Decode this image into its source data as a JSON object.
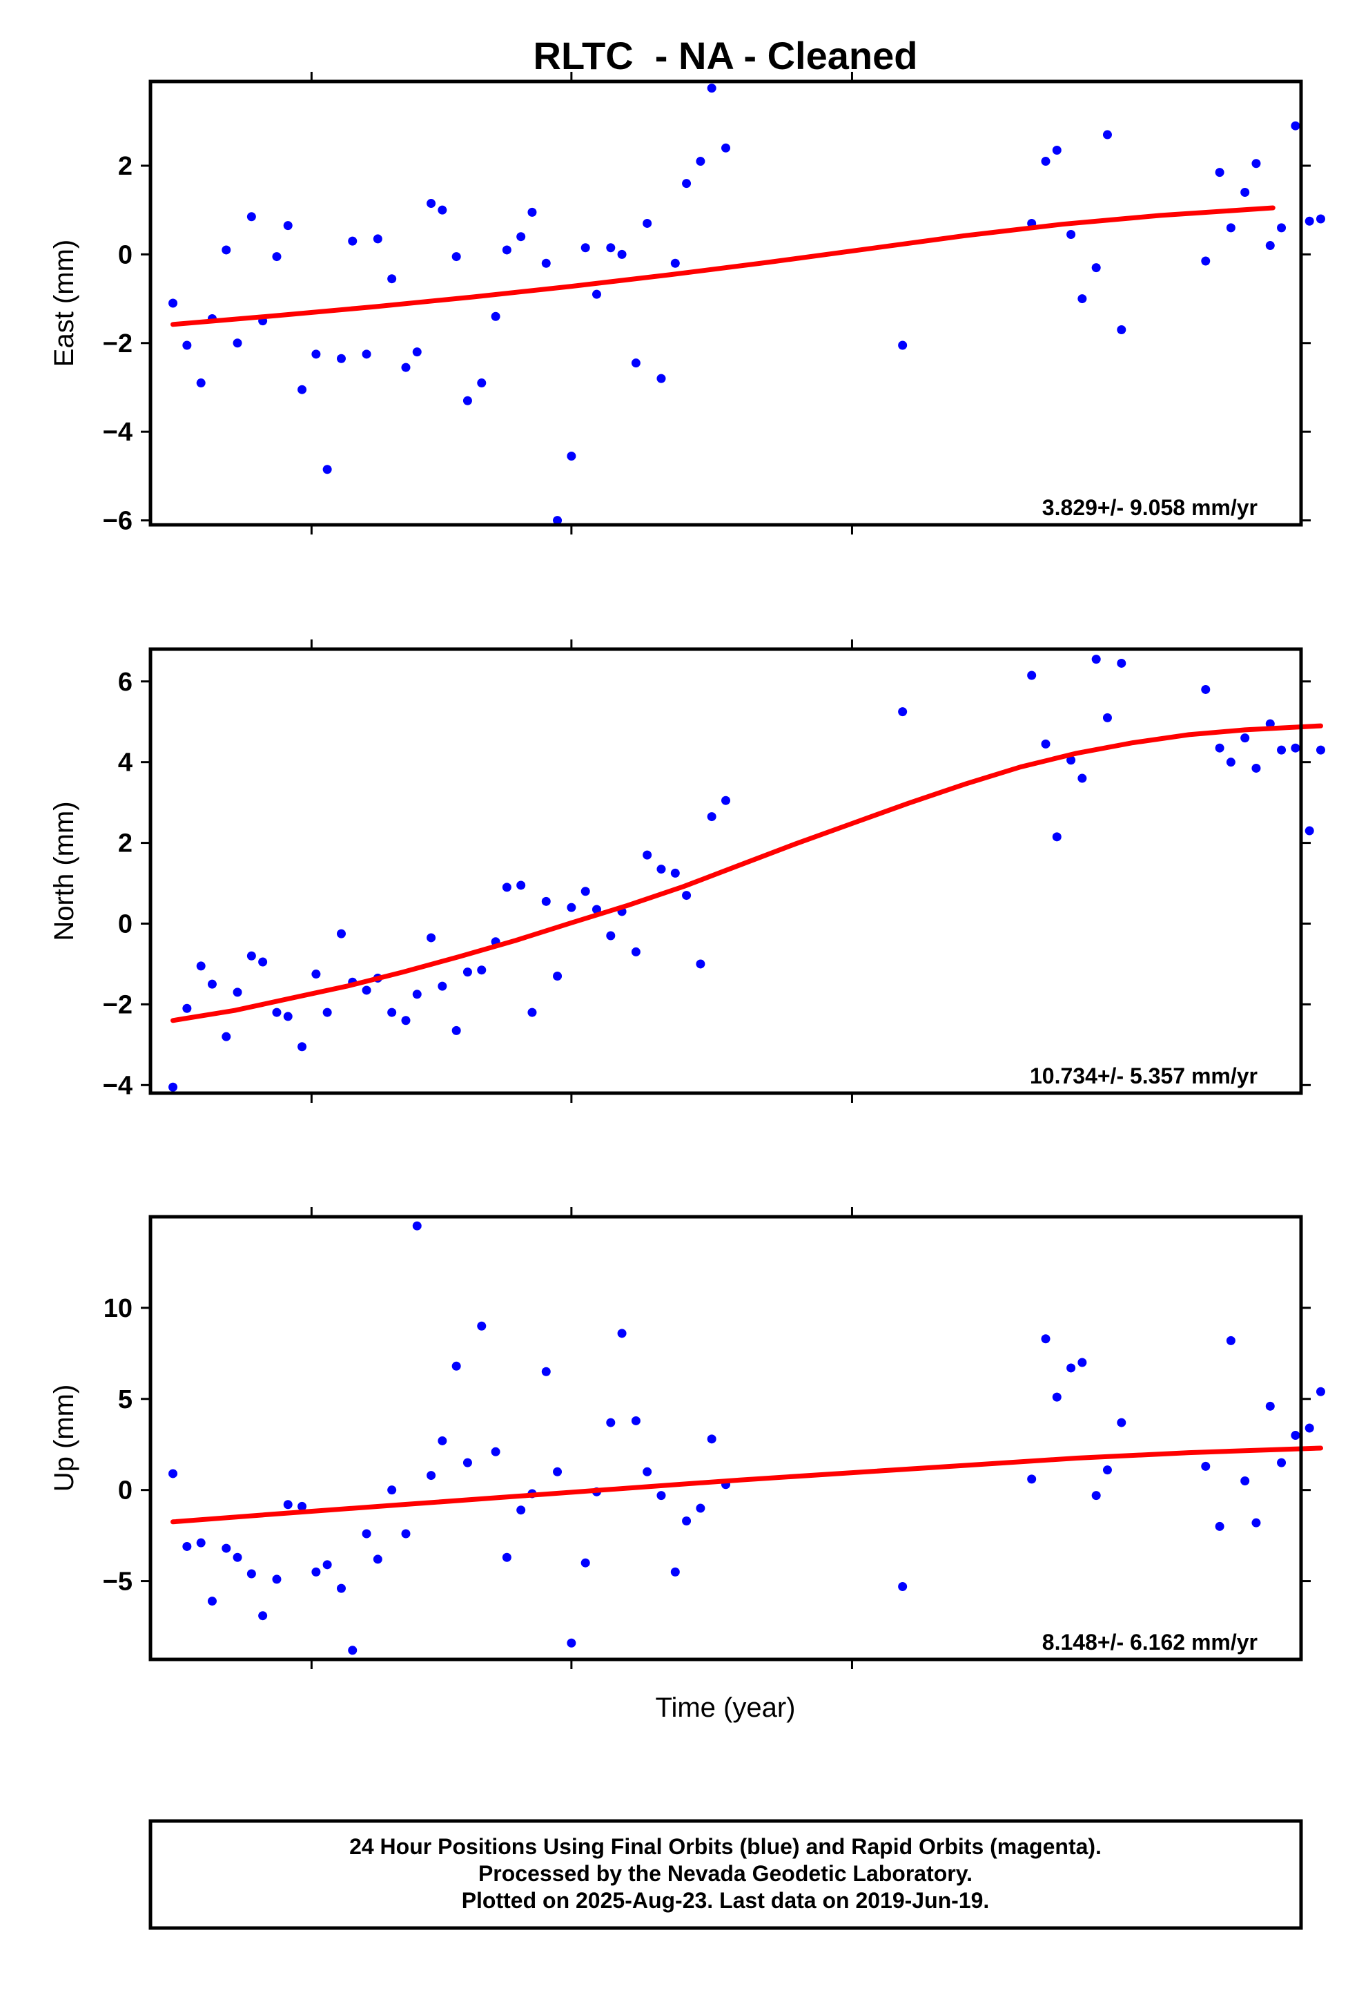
{
  "chart_data": {
    "type": "scatter",
    "title": "RLTC  - NA - Cleaned",
    "xlabel": "Time (year)",
    "xlim": [
      2015.5,
      2019.6
    ],
    "point_color": "#0000ff",
    "fit_color": "#ff0000",
    "panels": [
      {
        "id": "east",
        "ylabel": "East (mm)",
        "ylim": [
          -6.1,
          3.9
        ],
        "yticks": [
          {
            "v": 2,
            "label": "2"
          },
          {
            "v": 0,
            "label": "0"
          },
          {
            "v": -2,
            "label": "−2"
          },
          {
            "v": -4,
            "label": "−4"
          },
          {
            "v": -6,
            "label": "−6"
          }
        ],
        "rate_label": "3.829+/- 9.058 mm/yr",
        "fit": {
          "x": [
            2015.58,
            2015.95,
            2016.3,
            2016.65,
            2017.0,
            2017.35,
            2017.7,
            2018.05,
            2018.4,
            2018.75,
            2019.1,
            2019.5
          ],
          "y": [
            -1.58,
            -1.38,
            -1.18,
            -0.96,
            -0.72,
            -0.46,
            -0.18,
            0.12,
            0.42,
            0.68,
            0.88,
            1.05
          ]
        },
        "points": {
          "x": [
            2015.58,
            2015.63,
            2015.68,
            2015.72,
            2015.77,
            2015.81,
            2015.86,
            2015.9,
            2015.95,
            2015.99,
            2016.04,
            2016.09,
            2016.13,
            2016.18,
            2016.22,
            2016.27,
            2016.31,
            2016.36,
            2016.41,
            2016.45,
            2016.5,
            2016.54,
            2016.59,
            2016.63,
            2016.68,
            2016.73,
            2016.77,
            2016.82,
            2016.86,
            2016.91,
            2016.95,
            2017.0,
            2017.05,
            2017.09,
            2017.14,
            2017.18,
            2017.23,
            2017.27,
            2017.32,
            2017.37,
            2017.41,
            2017.46,
            2017.5,
            2017.55,
            2018.18,
            2018.64,
            2018.69,
            2018.73,
            2018.78,
            2018.82,
            2018.87,
            2018.91,
            2018.96,
            2019.26,
            2019.31,
            2019.35,
            2019.4,
            2019.44,
            2019.49,
            2019.53,
            2019.58,
            2019.63,
            2019.67
          ],
          "y": [
            -1.1,
            -2.05,
            -2.9,
            -1.45,
            0.1,
            -2.0,
            0.85,
            -1.5,
            -0.05,
            0.65,
            -3.05,
            -2.25,
            -4.85,
            -2.35,
            0.3,
            -2.25,
            0.35,
            -0.55,
            -2.55,
            -2.2,
            1.15,
            1.0,
            -0.05,
            -3.3,
            -2.9,
            -1.4,
            0.1,
            0.4,
            0.95,
            -0.2,
            -6.0,
            -4.55,
            0.15,
            -0.9,
            0.15,
            0.0,
            -2.45,
            0.7,
            -2.8,
            -0.2,
            1.6,
            2.1,
            3.75,
            2.4,
            -2.05,
            0.7,
            2.1,
            2.35,
            0.45,
            -1.0,
            -0.3,
            2.7,
            -1.7,
            -0.15,
            1.85,
            0.6,
            1.4,
            2.05,
            0.2,
            0.6,
            2.9,
            0.75,
            0.8
          ]
        }
      },
      {
        "id": "north",
        "ylabel": "North (mm)",
        "ylim": [
          -4.2,
          6.8
        ],
        "yticks": [
          {
            "v": 6,
            "label": "6"
          },
          {
            "v": 4,
            "label": "4"
          },
          {
            "v": 2,
            "label": "2"
          },
          {
            "v": 0,
            "label": "0"
          },
          {
            "v": -2,
            "label": "−2"
          },
          {
            "v": -4,
            "label": "−4"
          }
        ],
        "rate_label": "10.734+/- 5.357 mm/yr",
        "fit": {
          "x": [
            2015.58,
            2015.8,
            2016.0,
            2016.2,
            2016.4,
            2016.6,
            2016.8,
            2017.0,
            2017.2,
            2017.4,
            2017.6,
            2017.8,
            2018.0,
            2018.2,
            2018.4,
            2018.6,
            2018.8,
            2019.0,
            2019.2,
            2019.4,
            2019.67
          ],
          "y": [
            -2.4,
            -2.15,
            -1.85,
            -1.55,
            -1.2,
            -0.82,
            -0.42,
            0.02,
            0.45,
            0.92,
            1.45,
            1.98,
            2.48,
            2.98,
            3.45,
            3.88,
            4.22,
            4.48,
            4.68,
            4.8,
            4.9
          ]
        },
        "points": {
          "x": [
            2015.58,
            2015.63,
            2015.68,
            2015.72,
            2015.77,
            2015.81,
            2015.86,
            2015.9,
            2015.95,
            2015.99,
            2016.04,
            2016.09,
            2016.13,
            2016.18,
            2016.22,
            2016.27,
            2016.31,
            2016.36,
            2016.41,
            2016.45,
            2016.5,
            2016.54,
            2016.59,
            2016.63,
            2016.68,
            2016.73,
            2016.77,
            2016.82,
            2016.86,
            2016.91,
            2016.95,
            2017.0,
            2017.05,
            2017.09,
            2017.14,
            2017.18,
            2017.23,
            2017.27,
            2017.32,
            2017.37,
            2017.41,
            2017.46,
            2017.5,
            2017.55,
            2018.18,
            2018.64,
            2018.69,
            2018.73,
            2018.78,
            2018.82,
            2018.87,
            2018.91,
            2018.96,
            2019.26,
            2019.31,
            2019.35,
            2019.4,
            2019.44,
            2019.49,
            2019.53,
            2019.58,
            2019.63,
            2019.67
          ],
          "y": [
            -4.05,
            -2.1,
            -1.05,
            -1.5,
            -2.8,
            -1.7,
            -0.8,
            -0.95,
            -2.2,
            -2.3,
            -3.05,
            -1.25,
            -2.2,
            -0.25,
            -1.45,
            -1.65,
            -1.35,
            -2.2,
            -2.4,
            -1.75,
            -0.35,
            -1.55,
            -2.65,
            -1.2,
            -1.15,
            -0.45,
            0.9,
            0.95,
            -2.2,
            0.55,
            -1.3,
            0.4,
            0.8,
            0.35,
            -0.3,
            0.3,
            -0.7,
            1.7,
            1.35,
            1.25,
            0.7,
            -1.0,
            2.65,
            3.05,
            5.25,
            6.15,
            4.45,
            2.15,
            4.05,
            3.6,
            6.55,
            5.1,
            6.45,
            5.8,
            4.35,
            4.0,
            4.6,
            3.85,
            4.95,
            4.3,
            4.35,
            2.3,
            4.3
          ]
        }
      },
      {
        "id": "up",
        "ylabel": "Up (mm)",
        "ylim": [
          -9.3,
          15.0
        ],
        "yticks": [
          {
            "v": 10,
            "label": "10"
          },
          {
            "v": 5,
            "label": "5"
          },
          {
            "v": 0,
            "label": "0"
          },
          {
            "v": -5,
            "label": "−5"
          }
        ],
        "rate_label": "8.148+/- 6.162 mm/yr",
        "fit": {
          "x": [
            2015.58,
            2016.0,
            2016.4,
            2016.8,
            2017.2,
            2017.6,
            2018.0,
            2018.4,
            2018.8,
            2019.2,
            2019.67
          ],
          "y": [
            -1.75,
            -1.25,
            -0.8,
            -0.35,
            0.1,
            0.55,
            0.95,
            1.35,
            1.75,
            2.05,
            2.3
          ]
        },
        "points": {
          "x": [
            2015.58,
            2015.63,
            2015.68,
            2015.72,
            2015.77,
            2015.81,
            2015.86,
            2015.9,
            2015.95,
            2015.99,
            2016.04,
            2016.09,
            2016.13,
            2016.18,
            2016.22,
            2016.27,
            2016.31,
            2016.36,
            2016.41,
            2016.45,
            2016.5,
            2016.54,
            2016.59,
            2016.63,
            2016.68,
            2016.73,
            2016.77,
            2016.82,
            2016.86,
            2016.91,
            2016.95,
            2017.0,
            2017.05,
            2017.09,
            2017.14,
            2017.18,
            2017.23,
            2017.27,
            2017.32,
            2017.37,
            2017.41,
            2017.46,
            2017.5,
            2017.55,
            2018.18,
            2018.64,
            2018.69,
            2018.73,
            2018.78,
            2018.82,
            2018.87,
            2018.91,
            2018.96,
            2019.26,
            2019.31,
            2019.35,
            2019.4,
            2019.44,
            2019.49,
            2019.53,
            2019.58,
            2019.63,
            2019.67
          ],
          "y": [
            0.9,
            -3.1,
            -2.9,
            -6.1,
            -3.2,
            -3.7,
            -4.6,
            -6.9,
            -4.9,
            -0.8,
            -0.9,
            -4.5,
            -4.1,
            -5.4,
            -8.8,
            -2.4,
            -3.8,
            0.0,
            -2.4,
            14.5,
            0.8,
            2.7,
            6.8,
            1.5,
            9.0,
            2.1,
            -3.7,
            -1.1,
            -0.2,
            6.5,
            1.0,
            -8.4,
            -4.0,
            -0.1,
            3.7,
            8.6,
            3.8,
            1.0,
            -0.3,
            -4.5,
            -1.7,
            -1.0,
            2.8,
            0.3,
            -5.3,
            0.6,
            8.3,
            5.1,
            6.7,
            7.0,
            -0.3,
            1.1,
            3.7,
            1.3,
            -2.0,
            8.2,
            0.5,
            -1.8,
            4.6,
            1.5,
            3.0,
            3.4,
            5.4
          ]
        }
      }
    ]
  },
  "footer": {
    "line1": "24 Hour Positions Using Final Orbits (blue) and Rapid Orbits (magenta).",
    "line2": "Processed by the Nevada Geodetic Laboratory.",
    "line3": "Plotted on 2025-Aug-23. Last data on 2019-Jun-19."
  }
}
